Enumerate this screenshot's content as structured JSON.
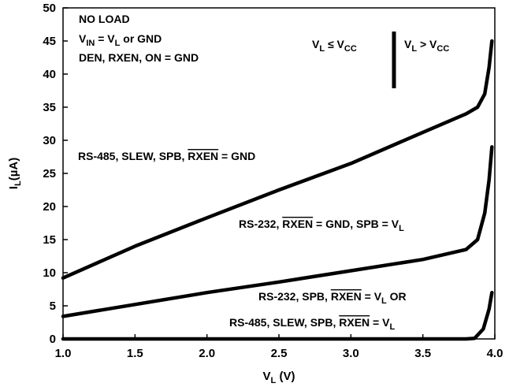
{
  "chart_data": {
    "type": "line",
    "xlabel": {
      "main": "V",
      "sub": "L",
      "unit": " (V)"
    },
    "ylabel": {
      "main": "I",
      "sub": "L",
      "unit": "(µA)"
    },
    "xlim": [
      1.0,
      4.0
    ],
    "ylim": [
      0,
      50
    ],
    "x_ticks": [
      "1.0",
      "1.5",
      "2.0",
      "2.5",
      "3.0",
      "3.5",
      "4.0"
    ],
    "y_ticks": [
      "0",
      "5",
      "10",
      "15",
      "20",
      "25",
      "30",
      "35",
      "40",
      "45",
      "50"
    ],
    "series": [
      {
        "points": [
          [
            1.0,
            9.2
          ],
          [
            1.5,
            14.0
          ],
          [
            2.0,
            18.3
          ],
          [
            2.5,
            22.5
          ],
          [
            3.0,
            26.5
          ],
          [
            3.5,
            31.2
          ],
          [
            3.8,
            34.0
          ],
          [
            3.88,
            35.0
          ],
          [
            3.93,
            37.0
          ],
          [
            3.96,
            41.0
          ],
          [
            3.98,
            45.0
          ]
        ]
      },
      {
        "points": [
          [
            1.0,
            3.4
          ],
          [
            1.5,
            5.2
          ],
          [
            2.0,
            7.0
          ],
          [
            2.5,
            8.6
          ],
          [
            3.0,
            10.3
          ],
          [
            3.5,
            12.0
          ],
          [
            3.8,
            13.5
          ],
          [
            3.88,
            15.0
          ],
          [
            3.93,
            19.0
          ],
          [
            3.96,
            24.0
          ],
          [
            3.98,
            29.0
          ]
        ]
      },
      {
        "points": [
          [
            1.0,
            0.0
          ],
          [
            3.8,
            0.0
          ],
          [
            3.86,
            0.1
          ],
          [
            3.92,
            1.5
          ],
          [
            3.96,
            4.5
          ],
          [
            3.98,
            7.0
          ]
        ]
      }
    ],
    "annotations": {
      "conditions": {
        "line1": "NO LOAD",
        "line2": {
          "a": "V",
          "a_sub": "IN",
          "b": " = V",
          "b_sub": "L",
          "c": " or GND"
        },
        "line3": "DEN, RXEN, ON = GND"
      },
      "region_left": {
        "a": "V",
        "a_sub": "L",
        "b": " ≤ V",
        "b_sub": "CC"
      },
      "region_right": {
        "a": "V",
        "a_sub": "L",
        "b": " > V",
        "b_sub": "CC"
      },
      "series1_label": {
        "a": "RS-485, SLEW, SPB, ",
        "over": "RXEN",
        "b": " = GND"
      },
      "series2_label": {
        "a": "RS-232, ",
        "over": "RXEN",
        "b": " = GND, SPB = V",
        "b_sub": "L"
      },
      "series3_label_1": {
        "a": "RS-232, SPB, ",
        "over": "RXEN",
        "b": " = V",
        "b_sub": "L",
        "c": " OR"
      },
      "series3_label_2": {
        "a": "RS-485, SLEW, SPB, ",
        "over": "RXEN",
        "b": " = V",
        "b_sub": "L"
      }
    }
  }
}
